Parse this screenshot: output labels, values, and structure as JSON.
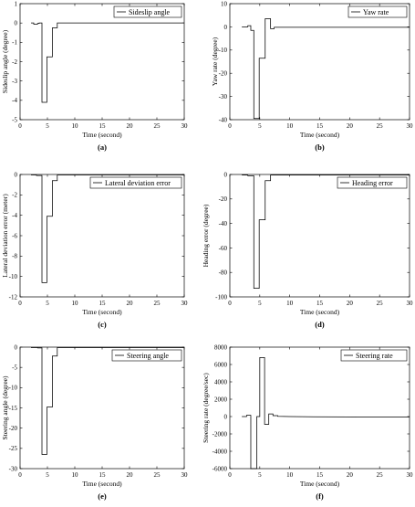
{
  "figure": {
    "panels": [
      {
        "id": "a",
        "caption": "(a)",
        "legend": "Sideslip angle",
        "xlabel": "Time (second)",
        "ylabel": "Sideslip angle (degree)"
      },
      {
        "id": "b",
        "caption": "(b)",
        "legend": "Yaw rate",
        "xlabel": "Time (second)",
        "ylabel": "Yaw rate (degree)"
      },
      {
        "id": "c",
        "caption": "(c)",
        "legend": "Lateral deviation error",
        "xlabel": "Time (second)",
        "ylabel": "Lateral deviation error (meter)"
      },
      {
        "id": "d",
        "caption": "(d)",
        "legend": "Heading error",
        "xlabel": "Time (second)",
        "ylabel": "Heading error (degree)"
      },
      {
        "id": "e",
        "caption": "(e)",
        "legend": "Steering angle",
        "xlabel": "Time (second)",
        "ylabel": "Steering angle (degree)"
      },
      {
        "id": "f",
        "caption": "(f)",
        "legend": "Steering rate",
        "xlabel": "Time (second)",
        "ylabel": "Steering rate (degree/sec)"
      }
    ]
  },
  "chart_data": [
    {
      "type": "line",
      "title": "",
      "xlabel": "Time (second)",
      "ylabel": "Sideslip angle (degree)",
      "xlim": [
        0,
        30
      ],
      "ylim": [
        -5,
        1
      ],
      "xticks": [
        0,
        5,
        10,
        15,
        20,
        25,
        30
      ],
      "yticks": [
        -5,
        -4,
        -3,
        -2,
        -1,
        0,
        1
      ],
      "series": [
        {
          "name": "Sideslip angle",
          "x": [
            2,
            2.5,
            2.5,
            3.2,
            3.2,
            3.5,
            3.5,
            4,
            4,
            4.9,
            4.9,
            5.9,
            5.9,
            6.8,
            6.8,
            30
          ],
          "y": [
            0,
            0,
            -0.06,
            -0.06,
            -0.02,
            -0.02,
            0,
            0,
            -4.1,
            -4.1,
            -1.75,
            -1.75,
            -0.25,
            -0.25,
            0,
            0
          ]
        }
      ],
      "legend_position": "top-right"
    },
    {
      "type": "line",
      "title": "",
      "xlabel": "Time (second)",
      "ylabel": "Yaw rate (degree)",
      "xlim": [
        0,
        30
      ],
      "ylim": [
        -40,
        10
      ],
      "xticks": [
        0,
        5,
        10,
        15,
        20,
        25,
        30
      ],
      "yticks": [
        -40,
        -30,
        -20,
        -10,
        0,
        10
      ],
      "series": [
        {
          "name": "Yaw rate",
          "x": [
            2,
            3,
            3,
            3.5,
            3.5,
            4,
            4,
            4.9,
            4.9,
            5.9,
            5.9,
            6.8,
            6.8,
            7.4,
            7.4,
            30
          ],
          "y": [
            0,
            0,
            0.5,
            0.5,
            -1.5,
            -1.5,
            -39.5,
            -39.5,
            -13.5,
            -13.5,
            3.5,
            3.5,
            -0.8,
            -0.8,
            -0.2,
            -0.2
          ]
        }
      ],
      "legend_position": "top-right"
    },
    {
      "type": "line",
      "title": "",
      "xlabel": "Time (second)",
      "ylabel": "Lateral deviation error (meter)",
      "xlim": [
        0,
        30
      ],
      "ylim": [
        -12,
        0
      ],
      "xticks": [
        0,
        5,
        10,
        15,
        20,
        25,
        30
      ],
      "yticks": [
        -12,
        -10,
        -8,
        -6,
        -4,
        -2,
        0
      ],
      "series": [
        {
          "name": "Lateral deviation error",
          "x": [
            2,
            3,
            3,
            4,
            4,
            4.9,
            4.9,
            5.9,
            5.9,
            6.8,
            6.8,
            30
          ],
          "y": [
            -0.05,
            -0.05,
            -0.1,
            -0.1,
            -10.6,
            -10.6,
            -4.1,
            -4.1,
            -0.6,
            -0.6,
            -0.05,
            -0.05
          ]
        }
      ],
      "legend_position": "top-right"
    },
    {
      "type": "line",
      "title": "",
      "xlabel": "Time (second)",
      "ylabel": "Heading error (degree)",
      "xlim": [
        0,
        30
      ],
      "ylim": [
        -100,
        0
      ],
      "xticks": [
        0,
        5,
        10,
        15,
        20,
        25,
        30
      ],
      "yticks": [
        -100,
        -80,
        -60,
        -40,
        -20,
        0
      ],
      "series": [
        {
          "name": "Heading error",
          "x": [
            2,
            3,
            3,
            4,
            4,
            4.9,
            4.9,
            5.9,
            5.9,
            6.8,
            6.8,
            30
          ],
          "y": [
            -0.5,
            -0.5,
            -1,
            -1,
            -93,
            -93,
            -37,
            -37,
            -5,
            -5,
            -0.5,
            -0.5
          ]
        }
      ],
      "legend_position": "top-right"
    },
    {
      "type": "line",
      "title": "",
      "xlabel": "Time (second)",
      "ylabel": "Steering angle (degree)",
      "xlim": [
        0,
        30
      ],
      "ylim": [
        -30,
        0
      ],
      "xticks": [
        0,
        5,
        10,
        15,
        20,
        25,
        30
      ],
      "yticks": [
        -30,
        -25,
        -20,
        -15,
        -10,
        -5,
        0
      ],
      "series": [
        {
          "name": "Steering angle",
          "x": [
            2,
            3.2,
            3.2,
            4,
            4,
            4.9,
            4.9,
            5.9,
            5.9,
            6.8,
            6.8,
            30
          ],
          "y": [
            -0.1,
            -0.1,
            -0.2,
            -0.2,
            -26.5,
            -26.5,
            -14.8,
            -14.8,
            -2.2,
            -2.2,
            -0.1,
            -0.1
          ]
        }
      ],
      "legend_position": "top-right"
    },
    {
      "type": "line",
      "title": "",
      "xlabel": "Time (second)",
      "ylabel": "Steering rate (degree/sec)",
      "xlim": [
        0,
        30
      ],
      "ylim": [
        -6000,
        8000
      ],
      "xticks": [
        0,
        5,
        10,
        15,
        20,
        25,
        30
      ],
      "yticks": [
        -6000,
        -4000,
        -2000,
        0,
        2000,
        4000,
        6000,
        8000
      ],
      "series": [
        {
          "name": "Steering rate",
          "x": [
            2,
            2.8,
            2.8,
            3.5,
            3.5,
            3.8,
            3.8,
            4.5,
            4.5,
            5,
            5,
            5.8,
            5.8,
            6.5,
            6.5,
            7.2,
            7.2,
            8,
            8,
            10,
            14,
            30
          ],
          "y": [
            0,
            0,
            150,
            150,
            -6000,
            -6000,
            -6000,
            -6000,
            0,
            0,
            6800,
            6800,
            -900,
            -900,
            300,
            300,
            100,
            100,
            30,
            0,
            -30,
            -50
          ]
        }
      ],
      "legend_position": "top-right"
    }
  ]
}
